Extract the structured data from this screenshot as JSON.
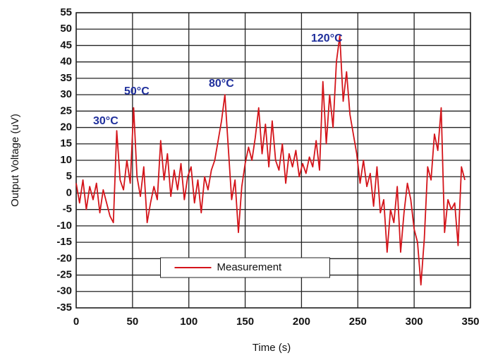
{
  "chart_data": {
    "type": "line",
    "x_label": "Time (s)",
    "y_label": "Output Voltage (uV)",
    "x": [
      0,
      3,
      6,
      9,
      12,
      15,
      18,
      21,
      24,
      27,
      30,
      33,
      36,
      39,
      42,
      45,
      48,
      51,
      54,
      57,
      60,
      63,
      66,
      69,
      72,
      75,
      78,
      81,
      84,
      87,
      90,
      93,
      96,
      99,
      102,
      105,
      108,
      111,
      114,
      117,
      120,
      123,
      126,
      129,
      132,
      135,
      138,
      141,
      144,
      147,
      150,
      153,
      156,
      159,
      162,
      165,
      168,
      171,
      174,
      177,
      180,
      183,
      186,
      189,
      192,
      195,
      198,
      201,
      204,
      207,
      210,
      213,
      216,
      219,
      222,
      225,
      228,
      231,
      234,
      237,
      240,
      243,
      246,
      249,
      252,
      255,
      258,
      261,
      264,
      267,
      270,
      273,
      276,
      279,
      282,
      285,
      288,
      291,
      294,
      297,
      300,
      303,
      306,
      309,
      312,
      315,
      318,
      321,
      324,
      327,
      330,
      333,
      336,
      339,
      342,
      345
    ],
    "series": [
      {
        "name": "Measurement",
        "color": "#d4141a",
        "values": [
          3,
          -3,
          4,
          -5,
          2,
          -2,
          3,
          -6,
          1,
          -3,
          -7,
          -9,
          19,
          4,
          1,
          10,
          3,
          26,
          5,
          -1,
          8,
          -9,
          -3,
          2,
          -2,
          16,
          4,
          12,
          -1,
          7,
          1,
          9,
          -2,
          5,
          8,
          -3,
          4,
          -6,
          5,
          1,
          7,
          10,
          16,
          22,
          30,
          14,
          -2,
          4,
          -12,
          2,
          9,
          14,
          10,
          17,
          26,
          12,
          21,
          8,
          22,
          10,
          7,
          15,
          3,
          12,
          8,
          13,
          5,
          9,
          6,
          11,
          8,
          16,
          7,
          34,
          15,
          30,
          20,
          40,
          48,
          28,
          37,
          24,
          18,
          12,
          3,
          10,
          2,
          6,
          -4,
          8,
          -6,
          -2,
          -18,
          -5,
          -9,
          2,
          -18,
          -6,
          3,
          -2,
          -11,
          -15,
          -28,
          -14,
          8,
          4,
          18,
          13,
          26,
          -12,
          -2,
          -5,
          -3,
          -16,
          8,
          4
        ]
      }
    ],
    "annotations": [
      "30°C",
      "50°C",
      "80°C",
      "120°C"
    ],
    "xlim": [
      0,
      350
    ],
    "xticks": [
      0,
      50,
      100,
      150,
      200,
      250,
      300,
      350
    ],
    "ylim": [
      -35,
      55
    ],
    "yticks": [
      -35,
      -30,
      -25,
      -20,
      -15,
      -10,
      -5,
      0,
      5,
      10,
      15,
      20,
      25,
      30,
      35,
      40,
      45,
      50,
      55
    ],
    "grid": true,
    "legend": "lower center"
  }
}
